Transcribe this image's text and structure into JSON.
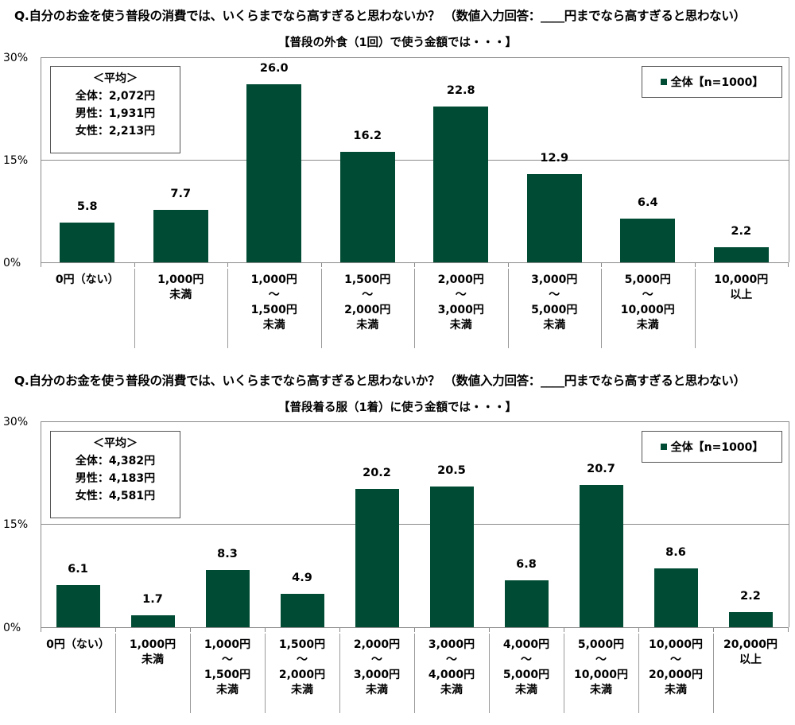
{
  "chart_data": [
    {
      "type": "bar",
      "title": "Q.自分のお金を使う普段の消費では、いくらまでなら高すぎると思わないか？（数値入力回答：____円までなら高すぎると思わない）",
      "subtitle": "【普段の外食（1回）で使う金額では・・・】",
      "xlabel": "",
      "ylabel": "",
      "ylim": [
        0,
        30
      ],
      "yticks": [
        "0%",
        "15%",
        "30%"
      ],
      "grid": true,
      "legend_position": "top-right",
      "categories": [
        "0円（ない）",
        "1,000円\n未満",
        "1,000円\n～\n1,500円\n未満",
        "1,500円\n～\n2,000円\n未満",
        "2,000円\n～\n3,000円\n未満",
        "3,000円\n～\n5,000円\n未満",
        "5,000円\n～\n10,000円\n未満",
        "10,000円\n以上"
      ],
      "series": [
        {
          "name": "全体【n=1000】",
          "values": [
            5.8,
            7.7,
            26.0,
            16.2,
            22.8,
            12.9,
            6.4,
            2.2
          ]
        }
      ],
      "value_labels": [
        "5.8",
        "7.7",
        "26.0",
        "16.2",
        "22.8",
        "12.9",
        "6.4",
        "2.2"
      ],
      "annotation": {
        "title": "＜平均＞",
        "lines": [
          "全体：2,072円",
          "男性：1,931円",
          "女性：2,213円"
        ]
      }
    },
    {
      "type": "bar",
      "title": "Q.自分のお金を使う普段の消費では、いくらまでなら高すぎると思わないか？（数値入力回答：____円までなら高すぎると思わない）",
      "subtitle": "【普段着る服（1着）に使う金額では・・・】",
      "xlabel": "",
      "ylabel": "",
      "ylim": [
        0,
        30
      ],
      "yticks": [
        "0%",
        "15%",
        "30%"
      ],
      "grid": true,
      "legend_position": "top-right",
      "categories": [
        "0円（ない）",
        "1,000円\n未満",
        "1,000円\n～\n1,500円\n未満",
        "1,500円\n～\n2,000円\n未満",
        "2,000円\n～\n3,000円\n未満",
        "3,000円\n～\n4,000円\n未満",
        "4,000円\n～\n5,000円\n未満",
        "5,000円\n～\n10,000円\n未満",
        "10,000円\n～\n20,000円\n未満",
        "20,000円\n以上"
      ],
      "series": [
        {
          "name": "全体【n=1000】",
          "values": [
            6.1,
            1.7,
            8.3,
            4.9,
            20.2,
            20.5,
            6.8,
            20.7,
            8.6,
            2.2
          ]
        }
      ],
      "value_labels": [
        "6.1",
        "1.7",
        "8.3",
        "4.9",
        "20.2",
        "20.5",
        "6.8",
        "20.7",
        "8.6",
        "2.2"
      ],
      "annotation": {
        "title": "＜平均＞",
        "lines": [
          "全体：4,382円",
          "男性：4,183円",
          "女性：4,581円"
        ]
      }
    }
  ],
  "colors": {
    "bar": "#004b33",
    "grid": "#8a8a8a"
  },
  "panels": [
    {
      "question": "Q.自分のお金を使う普段の消費では、いくらまでなら高すぎると思わないか？ （数値入力回答：____円までなら高すぎると思わない）",
      "subtitle": "【普段の外食（1回）で使う金額では・・・】",
      "yticks": {
        "top": "30%",
        "mid": "15%",
        "bottom": "0%"
      },
      "legend": "全体【n=1000】",
      "stats": {
        "title": "＜平均＞",
        "all": "全体：2,072円",
        "male": "男性：1,931円",
        "female": "女性：2,213円"
      }
    },
    {
      "question": "Q.自分のお金を使う普段の消費では、いくらまでなら高すぎると思わないか？ （数値入力回答：____円までなら高すぎると思わない）",
      "subtitle": "【普段着る服（1着）に使う金額では・・・】",
      "yticks": {
        "top": "30%",
        "mid": "15%",
        "bottom": "0%"
      },
      "legend": "全体【n=1000】",
      "stats": {
        "title": "＜平均＞",
        "all": "全体：4,382円",
        "male": "男性：4,183円",
        "female": "女性：4,581円"
      }
    }
  ]
}
